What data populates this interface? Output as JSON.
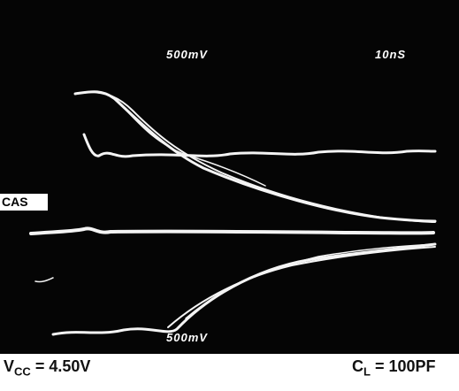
{
  "screen": {
    "top_voltage": "500mV",
    "time_base": "10nS",
    "channel": "CAS",
    "bottom_voltage": "500mV"
  },
  "footer": {
    "vcc": {
      "symbol": "V",
      "subscript": "CC",
      "value": "= 4.50V"
    },
    "load": {
      "symbol": "C",
      "subscript": "L",
      "value": "= 100PF"
    }
  }
}
